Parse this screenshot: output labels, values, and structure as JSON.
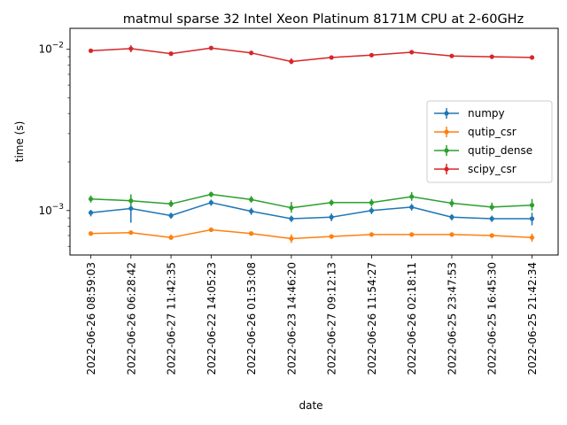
{
  "chart_data": {
    "type": "line",
    "title": "matmul sparse 32 Intel Xeon Platinum 8171M CPU at 2-60GHz",
    "xlabel": "date",
    "ylabel": "time (s)",
    "yscale": "log",
    "ylim": [
      0.00053,
      0.0135
    ],
    "y_tick_labels": [
      "10^-3",
      "10^-2"
    ],
    "legend_position": "center-right",
    "grid": false,
    "categories": [
      "2022-06-26 08:59:03",
      "2022-06-26 06:28:42",
      "2022-06-27 11:42:35",
      "2022-06-22 14:05:23",
      "2022-06-26 01:53:08",
      "2022-06-23 14:46:20",
      "2022-06-27 09:12:13",
      "2022-06-26 11:54:27",
      "2022-06-26 02:18:11",
      "2022-06-25 23:47:53",
      "2022-06-25 16:45:30",
      "2022-06-25 21:42:34"
    ],
    "series": [
      {
        "name": "numpy",
        "color": "#1f77b4",
        "values": [
          0.00097,
          0.00103,
          0.00093,
          0.00112,
          0.00099,
          0.00089,
          0.00091,
          0.001,
          0.00105,
          0.00091,
          0.00089,
          0.00089
        ],
        "err_low": [
          0.00092,
          0.00084,
          0.00089,
          0.00107,
          0.00094,
          0.00085,
          0.00086,
          0.00095,
          0.001,
          0.00087,
          0.00085,
          0.00081
        ],
        "err_high": [
          0.00101,
          0.00124,
          0.00097,
          0.00117,
          0.00104,
          0.00093,
          0.00096,
          0.00105,
          0.0011,
          0.00095,
          0.00093,
          0.00097
        ]
      },
      {
        "name": "qutip_csr",
        "color": "#ff7f0e",
        "values": [
          0.00072,
          0.00073,
          0.00068,
          0.00076,
          0.00072,
          0.00067,
          0.00069,
          0.00071,
          0.00071,
          0.00071,
          0.0007,
          0.00068
        ],
        "err_low": [
          0.0007,
          0.00071,
          0.00066,
          0.00074,
          0.0007,
          0.00063,
          0.00067,
          0.00069,
          0.00069,
          0.00069,
          0.00068,
          0.00064
        ],
        "err_high": [
          0.00074,
          0.00075,
          0.00071,
          0.00078,
          0.00074,
          0.00071,
          0.00071,
          0.00073,
          0.00073,
          0.00073,
          0.00072,
          0.00072
        ]
      },
      {
        "name": "qutip_dense",
        "color": "#2ca02c",
        "values": [
          0.00118,
          0.00115,
          0.0011,
          0.00126,
          0.00117,
          0.00104,
          0.00112,
          0.00112,
          0.00122,
          0.00111,
          0.00105,
          0.00108
        ],
        "err_low": [
          0.00112,
          0.00107,
          0.00105,
          0.00121,
          0.00112,
          0.00097,
          0.00107,
          0.00106,
          0.00115,
          0.00105,
          0.001,
          0.001
        ],
        "err_high": [
          0.00124,
          0.00126,
          0.00116,
          0.00131,
          0.00123,
          0.00113,
          0.00117,
          0.00118,
          0.0013,
          0.00118,
          0.00112,
          0.00118
        ]
      },
      {
        "name": "scipy_csr",
        "color": "#d62728",
        "values": [
          0.0098,
          0.0101,
          0.0094,
          0.0102,
          0.0095,
          0.0084,
          0.0089,
          0.0092,
          0.0096,
          0.0091,
          0.009,
          0.0089
        ],
        "err_low": [
          0.0096,
          0.0096,
          0.0092,
          0.01,
          0.0093,
          0.0081,
          0.0087,
          0.009,
          0.0094,
          0.0089,
          0.0087,
          0.0087
        ],
        "err_high": [
          0.01,
          0.0106,
          0.0096,
          0.0104,
          0.0097,
          0.0088,
          0.0091,
          0.0094,
          0.0098,
          0.0093,
          0.0093,
          0.0092
        ]
      }
    ]
  }
}
